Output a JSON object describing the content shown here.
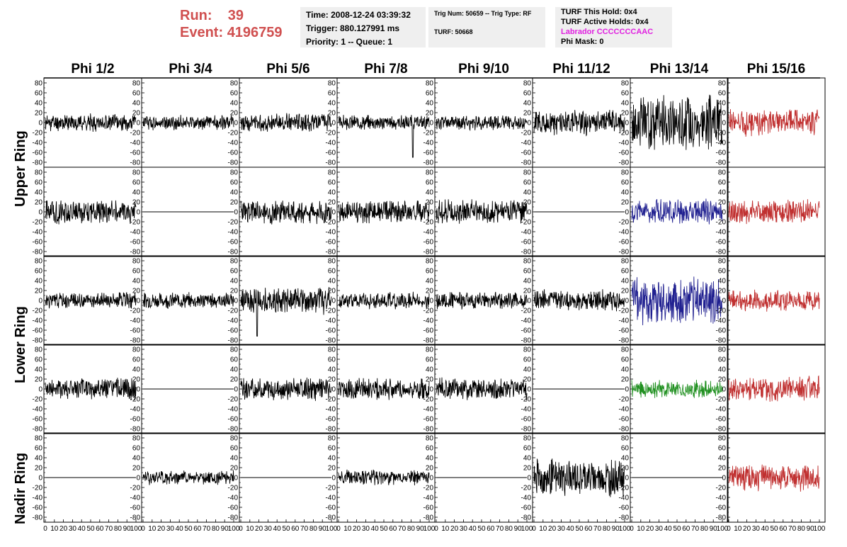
{
  "header": {
    "run_label": "Run:",
    "run_value": "39",
    "event_label": "Event:",
    "event_value": "4196759",
    "time": "Time: 2008-12-24 03:39:32",
    "trigger": "Trigger: 880.127991 ms",
    "priority": "Priority: 1 -- Queue: 1",
    "trig_num": "Trig Num: 50659 -- Trig Type: RF",
    "turf": "TURF: 50668",
    "turf_hold": "TURF This Hold: 0x4",
    "turf_active": "TURF Active Holds: 0x4",
    "labrador": "Labrador CCCCCCCAAC",
    "phi_mask": "Phi Mask: 0"
  },
  "colors": {
    "run": "#d05050",
    "labrador": "#e020e0",
    "black": "#000000",
    "red": "#c03030",
    "blue": "#202090",
    "green": "#209020"
  },
  "chart_data": {
    "type": "line",
    "columns": [
      "Phi 1/2",
      "Phi 3/4",
      "Phi 5/6",
      "Phi 7/8",
      "Phi 9/10",
      "Phi 11/12",
      "Phi 13/14",
      "Phi 15/16"
    ],
    "ring_labels": [
      "Upper Ring",
      "Lower Ring",
      "Nadir Ring"
    ],
    "ylim": [
      -90,
      90
    ],
    "yticks": [
      "80",
      "60",
      "40",
      "20",
      "0",
      "-20",
      "-40",
      "-60",
      "-80"
    ],
    "xlim": [
      0,
      100
    ],
    "xticks": [
      "0",
      "10",
      "20",
      "30",
      "40",
      "50",
      "60",
      "70",
      "80",
      "90",
      "100"
    ],
    "rows": [
      [
        {
          "color": "black",
          "amp": 14,
          "seed": 11
        },
        {
          "color": "black",
          "amp": 12,
          "seed": 12
        },
        {
          "color": "black",
          "amp": 15,
          "seed": 13
        },
        {
          "color": "black",
          "amp": 12,
          "seed": 14,
          "spike": [
            82,
            -70
          ]
        },
        {
          "color": "black",
          "amp": 12,
          "seed": 15
        },
        {
          "color": "black",
          "amp": 20,
          "seed": 16
        },
        {
          "color": "black",
          "amp": 45,
          "seed": 17
        },
        {
          "color": "red",
          "amp": 22,
          "seed": 18
        }
      ],
      [
        {
          "color": "black",
          "amp": 20,
          "seed": 21
        },
        {
          "color": "black",
          "amp": 0,
          "seed": 22
        },
        {
          "color": "black",
          "amp": 20,
          "seed": 23
        },
        {
          "color": "black",
          "amp": 18,
          "seed": 24
        },
        {
          "color": "black",
          "amp": 20,
          "seed": 25
        },
        {
          "color": "black",
          "amp": 0,
          "seed": 26
        },
        {
          "color": "blue",
          "amp": 20,
          "seed": 27
        },
        {
          "color": "red",
          "amp": 20,
          "seed": 28
        }
      ],
      [
        {
          "color": "black",
          "amp": 13,
          "seed": 31
        },
        {
          "color": "black",
          "amp": 13,
          "seed": 32
        },
        {
          "color": "black",
          "amp": 22,
          "seed": 33,
          "spike": [
            18,
            -72
          ]
        },
        {
          "color": "black",
          "amp": 14,
          "seed": 34
        },
        {
          "color": "black",
          "amp": 14,
          "seed": 35
        },
        {
          "color": "black",
          "amp": 17,
          "seed": 36
        },
        {
          "color": "blue",
          "amp": 40,
          "seed": 37
        },
        {
          "color": "red",
          "amp": 17,
          "seed": 38
        }
      ],
      [
        {
          "color": "black",
          "amp": 18,
          "seed": 41
        },
        {
          "color": "black",
          "amp": 0,
          "seed": 42
        },
        {
          "color": "black",
          "amp": 18,
          "seed": 43
        },
        {
          "color": "black",
          "amp": 18,
          "seed": 44
        },
        {
          "color": "black",
          "amp": 18,
          "seed": 45
        },
        {
          "color": "black",
          "amp": 0,
          "seed": 46
        },
        {
          "color": "green",
          "amp": 14,
          "seed": 47
        },
        {
          "color": "red",
          "amp": 22,
          "seed": 48
        }
      ],
      [
        {
          "color": "black",
          "amp": 0,
          "seed": 51
        },
        {
          "color": "black",
          "amp": 12,
          "seed": 52
        },
        {
          "color": "black",
          "amp": 0,
          "seed": 53
        },
        {
          "color": "black",
          "amp": 13,
          "seed": 54
        },
        {
          "color": "black",
          "amp": 0,
          "seed": 55
        },
        {
          "color": "black",
          "amp": 30,
          "seed": 56
        },
        {
          "color": "black",
          "amp": 0,
          "seed": 57
        },
        {
          "color": "red",
          "amp": 22,
          "seed": 58
        }
      ]
    ]
  }
}
